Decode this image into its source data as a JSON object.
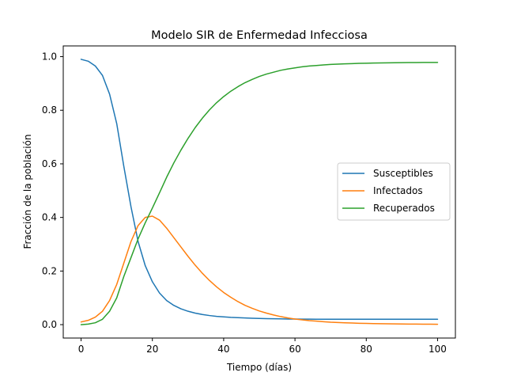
{
  "chart_data": {
    "type": "line",
    "title": "Modelo SIR de Enfermedad Infecciosa",
    "xlabel": "Tiempo (días)",
    "ylabel": "Fracción de la población",
    "xlim": [
      -5,
      105
    ],
    "ylim": [
      -0.05,
      1.04
    ],
    "xticks": [
      0,
      20,
      40,
      60,
      80,
      100
    ],
    "yticks": [
      0.0,
      0.2,
      0.4,
      0.6,
      0.8,
      1.0
    ],
    "xtick_labels": [
      "0",
      "20",
      "40",
      "60",
      "80",
      "100"
    ],
    "ytick_labels": [
      "0.0",
      "0.2",
      "0.4",
      "0.6",
      "0.8",
      "1.0"
    ],
    "grid": false,
    "legend_position": "center-right",
    "x": [
      0,
      2,
      4,
      6,
      8,
      10,
      12,
      14,
      16,
      18,
      20,
      22,
      24,
      26,
      28,
      30,
      32,
      34,
      36,
      38,
      40,
      42,
      44,
      46,
      48,
      50,
      52,
      54,
      56,
      58,
      60,
      62,
      64,
      66,
      68,
      70,
      72,
      74,
      76,
      78,
      80,
      82,
      84,
      86,
      88,
      90,
      92,
      94,
      96,
      98,
      100
    ],
    "series": [
      {
        "name": "Susceptibles",
        "color": "#1f77b4",
        "values": [
          0.99,
          0.983,
          0.965,
          0.93,
          0.86,
          0.75,
          0.59,
          0.44,
          0.31,
          0.22,
          0.16,
          0.118,
          0.09,
          0.072,
          0.059,
          0.05,
          0.043,
          0.038,
          0.034,
          0.031,
          0.029,
          0.027,
          0.026,
          0.025,
          0.024,
          0.023,
          0.0225,
          0.022,
          0.0215,
          0.021,
          0.021,
          0.0205,
          0.0205,
          0.02,
          0.02,
          0.02,
          0.02,
          0.02,
          0.02,
          0.02,
          0.02,
          0.02,
          0.02,
          0.02,
          0.02,
          0.02,
          0.02,
          0.02,
          0.02,
          0.02,
          0.02
        ]
      },
      {
        "name": "Infectados",
        "color": "#ff7f0e",
        "values": [
          0.01,
          0.016,
          0.028,
          0.05,
          0.09,
          0.15,
          0.23,
          0.31,
          0.37,
          0.4,
          0.405,
          0.39,
          0.36,
          0.325,
          0.29,
          0.255,
          0.222,
          0.192,
          0.165,
          0.141,
          0.12,
          0.102,
          0.086,
          0.072,
          0.061,
          0.051,
          0.043,
          0.036,
          0.03,
          0.025,
          0.021,
          0.018,
          0.015,
          0.013,
          0.011,
          0.009,
          0.008,
          0.007,
          0.006,
          0.005,
          0.0045,
          0.004,
          0.0035,
          0.003,
          0.0027,
          0.0024,
          0.0022,
          0.002,
          0.0018,
          0.0016,
          0.0015
        ]
      },
      {
        "name": "Recuperados",
        "color": "#2ca02c",
        "values": [
          0.0,
          0.002,
          0.007,
          0.02,
          0.05,
          0.1,
          0.18,
          0.25,
          0.32,
          0.38,
          0.435,
          0.492,
          0.55,
          0.603,
          0.651,
          0.695,
          0.735,
          0.77,
          0.801,
          0.828,
          0.851,
          0.871,
          0.888,
          0.903,
          0.915,
          0.926,
          0.935,
          0.942,
          0.949,
          0.954,
          0.958,
          0.962,
          0.965,
          0.967,
          0.969,
          0.971,
          0.972,
          0.973,
          0.974,
          0.975,
          0.9755,
          0.976,
          0.9765,
          0.977,
          0.9773,
          0.9776,
          0.9778,
          0.978,
          0.9782,
          0.9784,
          0.9785
        ]
      }
    ]
  }
}
